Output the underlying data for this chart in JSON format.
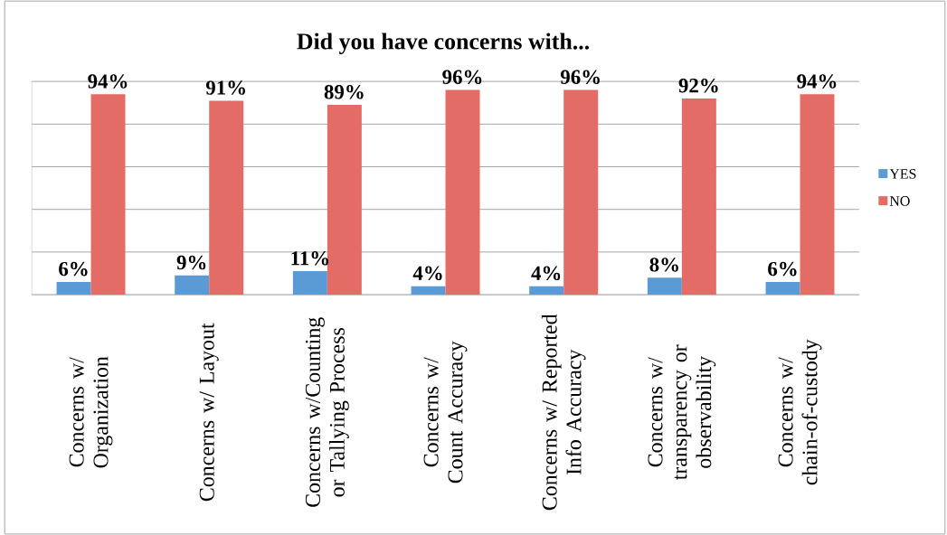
{
  "chart_data": {
    "type": "bar",
    "title": "Did you have concerns with...",
    "categories": [
      "Concerns w/ Organization",
      "Concerns w/ Layout",
      "Concerns w/Counting or Tallying Process",
      "Concerns w/ Count Accuracy",
      "Concerns w/ Reported Info Accuracy",
      "Concerns w/ transparency or observability",
      "Concerns w/ chain-of-custody"
    ],
    "series": [
      {
        "name": "YES",
        "color": "#5b9bd5",
        "values": [
          6,
          9,
          11,
          4,
          4,
          8,
          6
        ],
        "value_labels": [
          "6%",
          "9%",
          "11%",
          "4%",
          "4%",
          "8%",
          "6%"
        ]
      },
      {
        "name": "NO",
        "color": "#e46c67",
        "values": [
          94,
          91,
          89,
          96,
          96,
          92,
          94
        ],
        "value_labels": [
          "94%",
          "91%",
          "89%",
          "96%",
          "96%",
          "92%",
          "94%"
        ]
      }
    ],
    "ylim": [
      0,
      100
    ],
    "yticks": [
      {
        "value": 0,
        "label": null
      },
      {
        "value": 20,
        "label": null
      },
      {
        "value": 40,
        "label": null
      },
      {
        "value": 60,
        "label": null
      },
      {
        "value": 80,
        "label": null
      },
      {
        "value": 100,
        "label": null
      }
    ],
    "grid": "y",
    "legend": "right",
    "tick_labels": "x"
  }
}
